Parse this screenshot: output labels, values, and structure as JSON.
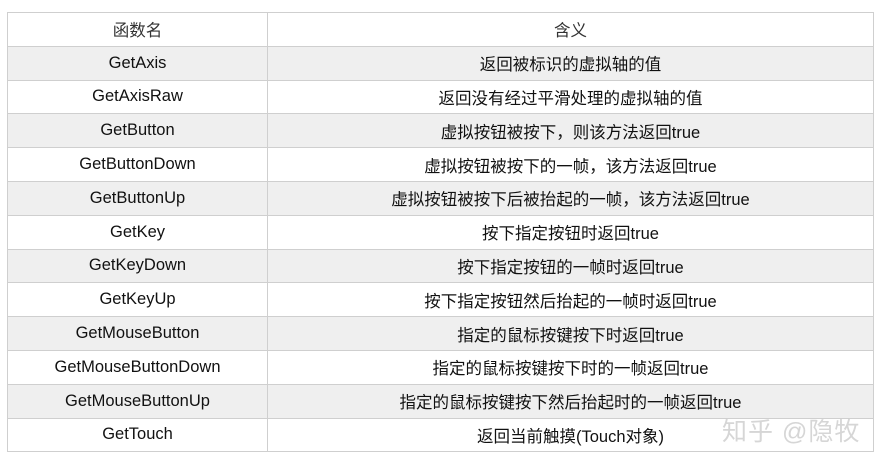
{
  "table": {
    "headers": [
      "函数名",
      "含义"
    ],
    "rows": [
      [
        "GetAxis",
        "返回被标识的虚拟轴的值"
      ],
      [
        "GetAxisRaw",
        "返回没有经过平滑处理的虚拟轴的值"
      ],
      [
        "GetButton",
        "虚拟按钮被按下，则该方法返回true"
      ],
      [
        "GetButtonDown",
        "虚拟按钮被按下的一帧，该方法返回true"
      ],
      [
        "GetButtonUp",
        "虚拟按钮被按下后被抬起的一帧，该方法返回true"
      ],
      [
        "GetKey",
        "按下指定按钮时返回true"
      ],
      [
        "GetKeyDown",
        "按下指定按钮的一帧时返回true"
      ],
      [
        "GetKeyUp",
        "按下指定按钮然后抬起的一帧时返回true"
      ],
      [
        "GetMouseButton",
        "指定的鼠标按键按下时返回true"
      ],
      [
        "GetMouseButtonDown",
        "指定的鼠标按键按下时的一帧返回true"
      ],
      [
        "GetMouseButtonUp",
        "指定的鼠标按键按下然后抬起时的一帧返回true"
      ],
      [
        "GetTouch",
        "返回当前触摸(Touch对象)"
      ]
    ]
  },
  "watermark": "知乎 @隐牧",
  "colors": {
    "stripe": "#efefef",
    "border": "#cfcfcf"
  }
}
